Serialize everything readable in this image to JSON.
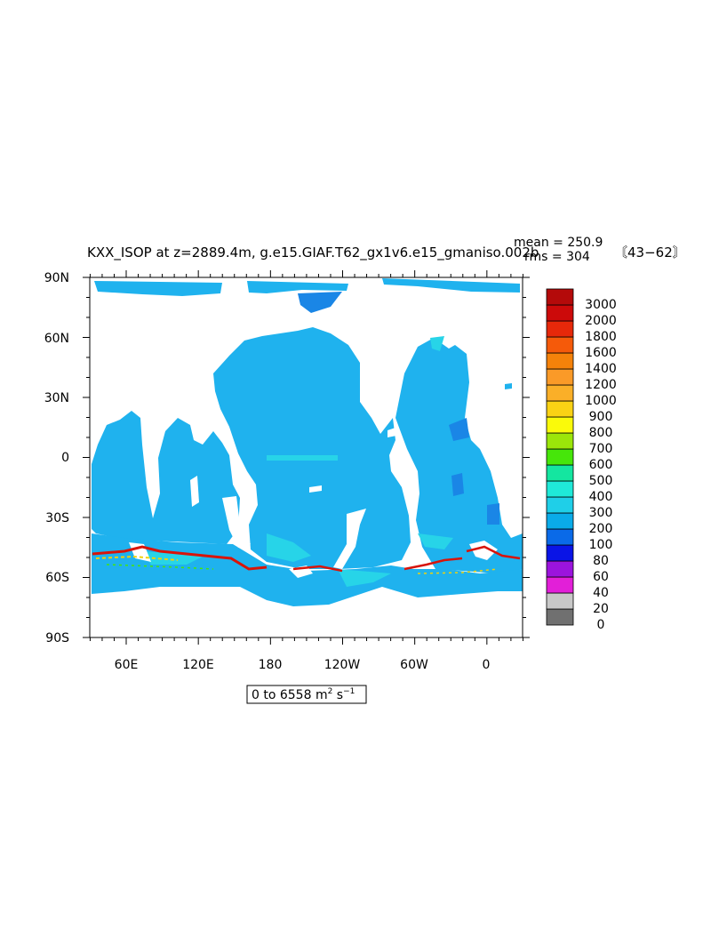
{
  "title": "KXX_ISOP at z=2889.4m, g.e15.GIAF.T62_gx1v6.e15_gmaniso.002b",
  "year_range": "〘43−62〙",
  "stats": {
    "mean_label": "mean = 250.9",
    "rms_label": "rms = 304"
  },
  "range_label": {
    "prefix": "0 to 6558 m",
    "mid": " s",
    "sup1": "2",
    "sup2": "−1"
  },
  "axes": {
    "lat_labels": [
      "90N",
      "60N",
      "30N",
      "0",
      "30S",
      "60S",
      "90S"
    ],
    "lon_labels": [
      "60E",
      "120E",
      "180",
      "120W",
      "60W",
      "0"
    ]
  },
  "colorbar": {
    "levels": [
      "0",
      "20",
      "40",
      "60",
      "80",
      "100",
      "200",
      "300",
      "400",
      "500",
      "600",
      "700",
      "800",
      "900",
      "1000",
      "1200",
      "1400",
      "1600",
      "1800",
      "2000",
      "3000"
    ],
    "colors": [
      "#707070",
      "#c8c8c8",
      "#e21fd8",
      "#9b14dd",
      "#0a14e6",
      "#0a6ae8",
      "#0aabe9",
      "#1fcfe8",
      "#1fe9d8",
      "#14e6a0",
      "#46e60a",
      "#9be60a",
      "#fafa0a",
      "#fad214",
      "#faaf28",
      "#fa9a28",
      "#f5820a",
      "#f55a0a",
      "#e6280a",
      "#cc0a0a",
      "#b40a0a"
    ]
  },
  "colors": {
    "ocean_base": "#1fb2ee",
    "ocean_light": "#27d4e8",
    "ocean_deep": "#1a86e6",
    "land": "#ffffff",
    "hotspot_red": "#d8140a",
    "hotspot_yellow": "#f0d20a",
    "hotspot_green": "#46e60a"
  }
}
